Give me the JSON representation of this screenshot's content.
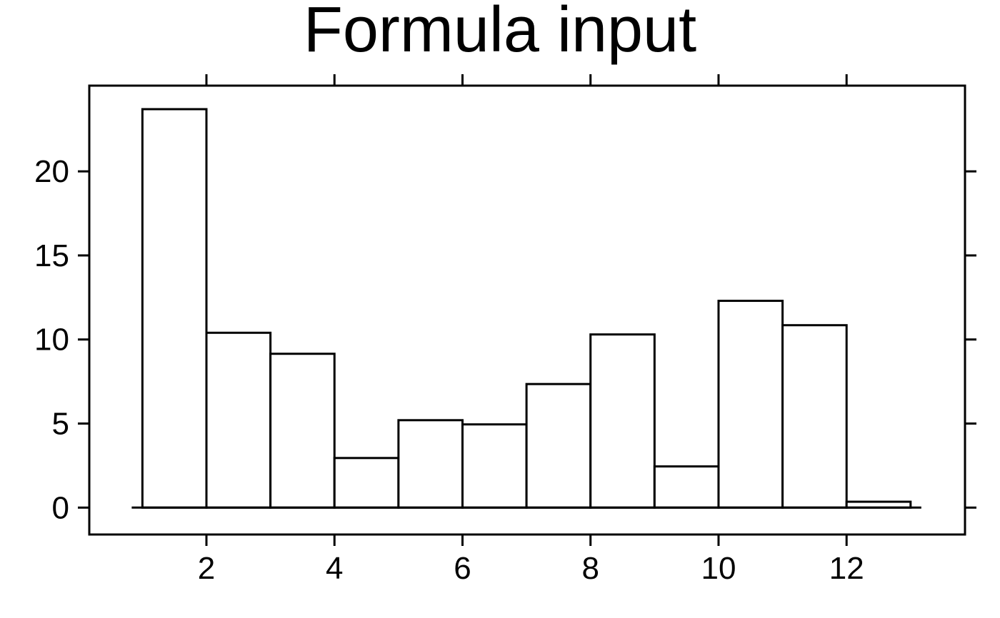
{
  "chart_data": {
    "type": "bar",
    "title": "Formula input",
    "xlabel": "",
    "ylabel": "",
    "bin_edges": [
      1,
      2,
      3,
      4,
      5,
      6,
      7,
      8,
      9,
      10,
      11,
      12,
      13
    ],
    "values": [
      23.7,
      10.4,
      9.15,
      2.95,
      5.2,
      4.95,
      7.35,
      10.3,
      2.45,
      12.3,
      10.85,
      0.35
    ],
    "xlim": [
      0.17,
      13.85
    ],
    "ylim": [
      -1.6,
      25.1
    ],
    "xticks": [
      2,
      4,
      6,
      8,
      10,
      12
    ],
    "xtick_labels": [
      "2",
      "4",
      "6",
      "8",
      "10",
      "12"
    ],
    "yticks": [
      0,
      5,
      10,
      15,
      20
    ],
    "ytick_labels": [
      "0",
      "5",
      "10",
      "15",
      "20"
    ],
    "grid": false,
    "legend": "none",
    "colors": {
      "bar_fill": "#ffffff",
      "bar_stroke": "#000000",
      "axis": "#000000",
      "background": "#ffffff"
    }
  }
}
